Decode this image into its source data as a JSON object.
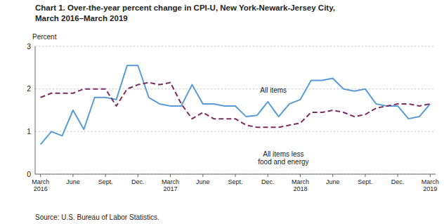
{
  "chart_data": {
    "type": "line",
    "title": "Chart 1. Over-the-year percent change in CPI-U, New York-Newark-Jersey City,",
    "subtitle": "March 2016–March 2019",
    "ylabel": "Percent",
    "source": "Source: U.S. Bureau of Labor Statistics.",
    "categories": [
      "March\n2016",
      null,
      null,
      "June",
      null,
      null,
      "Sept.",
      null,
      null,
      "Dec.",
      null,
      null,
      "March\n2017",
      null,
      null,
      "June",
      null,
      null,
      "Sept.",
      null,
      null,
      "Dec.",
      null,
      null,
      "March\n2018",
      null,
      null,
      "June",
      null,
      null,
      "Sept.",
      null,
      null,
      "Dec.",
      null,
      null,
      "March\n2019"
    ],
    "series": [
      {
        "name": "All items",
        "color": "#5B9BD5",
        "line_style": "solid",
        "values": [
          0.7,
          1.0,
          0.9,
          1.5,
          1.05,
          1.8,
          1.8,
          1.75,
          2.55,
          2.55,
          1.8,
          1.65,
          1.6,
          1.6,
          2.1,
          1.65,
          1.65,
          1.6,
          1.6,
          1.35,
          1.38,
          1.7,
          1.35,
          1.65,
          1.75,
          2.2,
          2.2,
          2.25,
          2.0,
          1.95,
          2.0,
          1.65,
          1.6,
          1.6,
          1.3,
          1.35,
          1.65
        ]
      },
      {
        "name": "All items less\nfood and energy",
        "color": "#7B2D5E",
        "line_style": "dashed",
        "values": [
          1.8,
          1.9,
          1.9,
          1.9,
          2.0,
          2.0,
          2.0,
          1.6,
          2.0,
          2.1,
          2.15,
          2.1,
          2.15,
          1.65,
          1.3,
          1.45,
          1.3,
          1.3,
          1.3,
          1.15,
          1.1,
          1.1,
          1.1,
          1.15,
          1.2,
          1.45,
          1.45,
          1.5,
          1.45,
          1.35,
          1.4,
          1.55,
          1.6,
          1.65,
          1.65,
          1.6,
          1.65
        ]
      }
    ],
    "ylim": [
      0,
      3
    ],
    "yticks": [
      0,
      1,
      2,
      3
    ],
    "grid": true
  }
}
